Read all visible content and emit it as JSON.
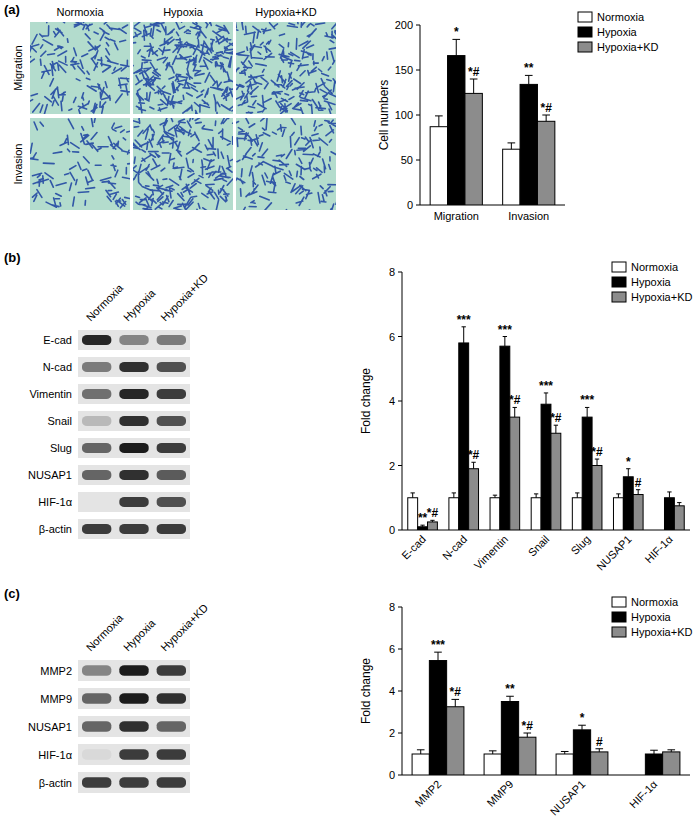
{
  "panels": [
    "(a)",
    "(b)",
    "(c)"
  ],
  "micrographs": {
    "columns": [
      "Normoxia",
      "Hypoxia",
      "Hypoxia+KD"
    ],
    "rows": [
      "Migration",
      "Invasion"
    ]
  },
  "blots": [
    {
      "lanes": [
        "Normoxia",
        "Hypoxia",
        "Hypoxia+KD"
      ],
      "rows": [
        {
          "label": "E-cad",
          "bands": [
            0.9,
            0.45,
            0.5
          ]
        },
        {
          "label": "N-cad",
          "bands": [
            0.5,
            0.85,
            0.7
          ]
        },
        {
          "label": "Vimentin",
          "bands": [
            0.55,
            0.9,
            0.8
          ]
        },
        {
          "label": "Snail",
          "bands": [
            0.2,
            0.85,
            0.7
          ]
        },
        {
          "label": "Slug",
          "bands": [
            0.6,
            0.95,
            0.8
          ]
        },
        {
          "label": "NUSAP1",
          "bands": [
            0.6,
            0.85,
            0.65
          ]
        },
        {
          "label": "HIF-1α",
          "bands": [
            0.0,
            0.8,
            0.7
          ]
        },
        {
          "label": "β-actin",
          "bands": [
            0.8,
            0.8,
            0.8
          ]
        }
      ]
    },
    {
      "lanes": [
        "Normoxia",
        "Hypoxia",
        "Hypoxia+KD"
      ],
      "rows": [
        {
          "label": "MMP2",
          "bands": [
            0.45,
            0.95,
            0.8
          ]
        },
        {
          "label": "MMP9",
          "bands": [
            0.6,
            0.95,
            0.85
          ]
        },
        {
          "label": "NUSAP1",
          "bands": [
            0.6,
            0.85,
            0.6
          ]
        },
        {
          "label": "HIF-1α",
          "bands": [
            0.05,
            0.8,
            0.8
          ]
        },
        {
          "label": "β-actin",
          "bands": [
            0.8,
            0.8,
            0.8
          ]
        }
      ]
    }
  ],
  "chart_data": [
    {
      "type": "bar",
      "y_label": "Cell numbers",
      "legend": "top-right",
      "categories": [
        "Migration",
        "Invasion"
      ],
      "ylim": [
        0,
        200
      ],
      "yticks": [
        0,
        50,
        100,
        150,
        200
      ],
      "series": [
        {
          "name": "Normoxia",
          "color": "#ffffff",
          "values": [
            87,
            62
          ],
          "errors": [
            12,
            7
          ],
          "annotations": [
            null,
            null
          ]
        },
        {
          "name": "Hypoxia",
          "color": "#000000",
          "values": [
            166,
            134
          ],
          "errors": [
            18,
            10
          ],
          "annotations": [
            "*",
            "**"
          ]
        },
        {
          "name": "Hypoxia+KD",
          "color": "#8c8c8c",
          "values": [
            124,
            93
          ],
          "errors": [
            16,
            7
          ],
          "annotations": [
            "*#",
            "*#"
          ]
        }
      ]
    },
    {
      "type": "bar",
      "y_label": "Fold change",
      "legend": "top-right",
      "categories": [
        "E-cad",
        "N-cad",
        "Vimentin",
        "Snail",
        "Slug",
        "NUSAP1",
        "HIF-1α"
      ],
      "ylim": [
        0,
        8
      ],
      "yticks": [
        0,
        2,
        4,
        6,
        8
      ],
      "series": [
        {
          "name": "Normoxia",
          "color": "#ffffff",
          "values": [
            1,
            1,
            1,
            1,
            1,
            1,
            null
          ],
          "errors": [
            0.15,
            0.15,
            0.08,
            0.12,
            0.15,
            0.12,
            null
          ],
          "annotations": [
            null,
            null,
            null,
            null,
            null,
            null,
            null
          ]
        },
        {
          "name": "Hypoxia",
          "color": "#000000",
          "values": [
            0.1,
            5.8,
            5.7,
            3.9,
            3.5,
            1.65,
            1.0
          ],
          "errors": [
            0.05,
            0.5,
            0.3,
            0.35,
            0.3,
            0.25,
            0.18
          ],
          "annotations": [
            "**",
            "***",
            "***",
            "***",
            "***",
            "*",
            null
          ]
        },
        {
          "name": "Hypoxia+KD",
          "color": "#8c8c8c",
          "values": [
            0.25,
            1.9,
            3.5,
            3.0,
            2.0,
            1.1,
            0.75
          ],
          "errors": [
            0.05,
            0.2,
            0.3,
            0.25,
            0.2,
            0.15,
            0.1
          ],
          "annotations": [
            "*#",
            "*#",
            "*#",
            "*#",
            "*#",
            "#",
            null
          ]
        }
      ]
    },
    {
      "type": "bar",
      "y_label": "Fold change",
      "legend": "top-right",
      "categories": [
        "MMP2",
        "MMP9",
        "NUSAP1",
        "HIF-1α"
      ],
      "ylim": [
        0,
        8
      ],
      "yticks": [
        0,
        2,
        4,
        6,
        8
      ],
      "series": [
        {
          "name": "Normoxia",
          "color": "#ffffff",
          "values": [
            1,
            1,
            1,
            null
          ],
          "errors": [
            0.2,
            0.15,
            0.12,
            null
          ],
          "annotations": [
            null,
            null,
            null,
            null
          ]
        },
        {
          "name": "Hypoxia",
          "color": "#000000",
          "values": [
            5.45,
            3.5,
            2.15,
            1.0
          ],
          "errors": [
            0.4,
            0.25,
            0.22,
            0.18
          ],
          "annotations": [
            "***",
            "**",
            "*",
            null
          ]
        },
        {
          "name": "Hypoxia+KD",
          "color": "#8c8c8c",
          "values": [
            3.25,
            1.8,
            1.1,
            1.1
          ],
          "errors": [
            0.35,
            0.2,
            0.15,
            0.1
          ],
          "annotations": [
            "*#",
            "*#",
            "#",
            null
          ]
        }
      ]
    }
  ]
}
